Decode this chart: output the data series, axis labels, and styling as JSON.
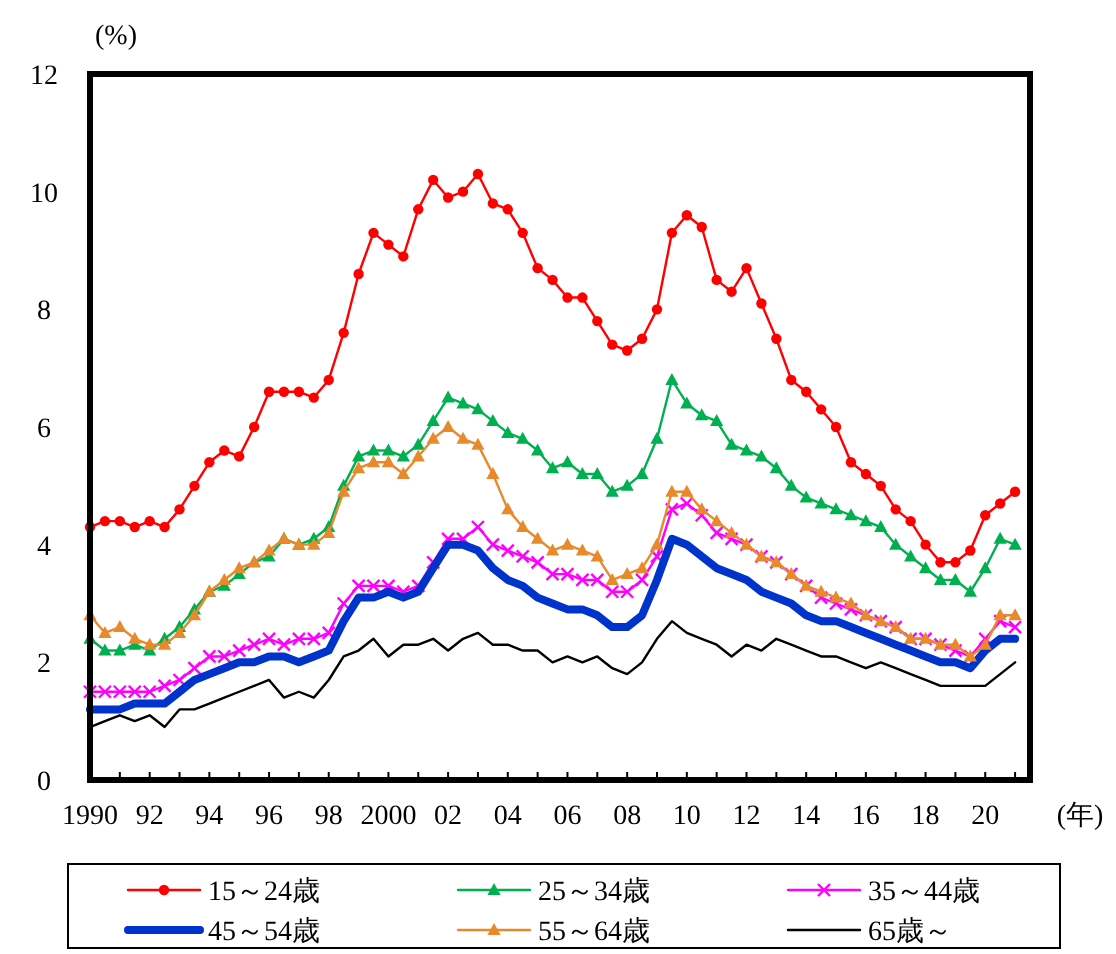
{
  "chart_data": {
    "type": "line",
    "ylabel": "(%)",
    "xlabel": "(年)",
    "x": [
      1990,
      1990.5,
      1991,
      1991.5,
      1992,
      1992.5,
      1993,
      1993.5,
      1994,
      1994.5,
      1995,
      1995.5,
      1996,
      1996.5,
      1997,
      1997.5,
      1998,
      1998.5,
      1999,
      1999.5,
      2000,
      2000.5,
      2001,
      2001.5,
      2002,
      2002.5,
      2003,
      2003.5,
      2004,
      2004.5,
      2005,
      2005.5,
      2006,
      2006.5,
      2007,
      2007.5,
      2008,
      2008.5,
      2009,
      2009.5,
      2010,
      2010.5,
      2011,
      2011.5,
      2012,
      2012.5,
      2013,
      2013.5,
      2014,
      2014.5,
      2015,
      2015.5,
      2016,
      2016.5,
      2017,
      2017.5,
      2018,
      2018.5,
      2019,
      2019.5,
      2020,
      2020.5,
      2021
    ],
    "xlim": [
      1990,
      2021.5
    ],
    "xticks": [
      {
        "value": 1990,
        "label": "1990"
      },
      {
        "value": 1991,
        "label": null
      },
      {
        "value": 1992,
        "label": "92"
      },
      {
        "value": 1993,
        "label": null
      },
      {
        "value": 1994,
        "label": "94"
      },
      {
        "value": 1995,
        "label": null
      },
      {
        "value": 1996,
        "label": "96"
      },
      {
        "value": 1997,
        "label": null
      },
      {
        "value": 1998,
        "label": "98"
      },
      {
        "value": 1999,
        "label": null
      },
      {
        "value": 2000,
        "label": "2000"
      },
      {
        "value": 2001,
        "label": null
      },
      {
        "value": 2002,
        "label": "02"
      },
      {
        "value": 2003,
        "label": null
      },
      {
        "value": 2004,
        "label": "04"
      },
      {
        "value": 2005,
        "label": null
      },
      {
        "value": 2006,
        "label": "06"
      },
      {
        "value": 2007,
        "label": null
      },
      {
        "value": 2008,
        "label": "08"
      },
      {
        "value": 2009,
        "label": null
      },
      {
        "value": 2010,
        "label": "10"
      },
      {
        "value": 2011,
        "label": null
      },
      {
        "value": 2012,
        "label": "12"
      },
      {
        "value": 2013,
        "label": null
      },
      {
        "value": 2014,
        "label": "14"
      },
      {
        "value": 2015,
        "label": null
      },
      {
        "value": 2016,
        "label": "16"
      },
      {
        "value": 2017,
        "label": null
      },
      {
        "value": 2018,
        "label": "18"
      },
      {
        "value": 2019,
        "label": null
      },
      {
        "value": 2020,
        "label": "20"
      },
      {
        "value": 2021,
        "label": null
      }
    ],
    "ylim": [
      0,
      12
    ],
    "yticks": [
      0,
      2,
      4,
      6,
      8,
      10,
      12
    ],
    "grid": false,
    "legend": "bottom",
    "line_style": "solid",
    "series": [
      {
        "name": "15～24歳",
        "color": "#ff0000",
        "marker": "circle",
        "values": [
          4.3,
          4.4,
          4.4,
          4.3,
          4.4,
          4.3,
          4.6,
          5.0,
          5.4,
          5.6,
          5.5,
          6.0,
          6.6,
          6.6,
          6.6,
          6.5,
          6.8,
          7.6,
          8.6,
          9.3,
          9.1,
          8.9,
          9.7,
          10.2,
          9.9,
          10.0,
          10.3,
          9.8,
          9.7,
          9.3,
          8.7,
          8.5,
          8.2,
          8.2,
          7.8,
          7.4,
          7.3,
          7.5,
          8.0,
          9.3,
          9.6,
          9.4,
          8.5,
          8.3,
          8.7,
          8.1,
          7.5,
          6.8,
          6.6,
          6.3,
          6.0,
          5.4,
          5.2,
          5.0,
          4.6,
          4.4,
          4.0,
          3.7,
          3.7,
          3.9,
          4.5,
          4.7,
          4.9
        ]
      },
      {
        "name": "25～34歳",
        "color": "#00b050",
        "marker": "triangle",
        "values": [
          2.4,
          2.2,
          2.2,
          2.3,
          2.2,
          2.4,
          2.6,
          2.9,
          3.2,
          3.3,
          3.5,
          3.7,
          3.8,
          4.1,
          4.0,
          4.1,
          4.3,
          5.0,
          5.5,
          5.6,
          5.6,
          5.5,
          5.7,
          6.1,
          6.5,
          6.4,
          6.3,
          6.1,
          5.9,
          5.8,
          5.6,
          5.3,
          5.4,
          5.2,
          5.2,
          4.9,
          5.0,
          5.2,
          5.8,
          6.8,
          6.4,
          6.2,
          6.1,
          5.7,
          5.6,
          5.5,
          5.3,
          5.0,
          4.8,
          4.7,
          4.6,
          4.5,
          4.4,
          4.3,
          4.0,
          3.8,
          3.6,
          3.4,
          3.4,
          3.2,
          3.6,
          4.1,
          4.0
        ]
      },
      {
        "name": "35～44歳",
        "color": "#ff00ff",
        "marker": "cross",
        "values": [
          1.5,
          1.5,
          1.5,
          1.5,
          1.5,
          1.6,
          1.7,
          1.9,
          2.1,
          2.1,
          2.2,
          2.3,
          2.4,
          2.3,
          2.4,
          2.4,
          2.5,
          3.0,
          3.3,
          3.3,
          3.3,
          3.2,
          3.3,
          3.7,
          4.1,
          4.1,
          4.3,
          4.0,
          3.9,
          3.8,
          3.7,
          3.5,
          3.5,
          3.4,
          3.4,
          3.2,
          3.2,
          3.4,
          3.8,
          4.6,
          4.7,
          4.5,
          4.2,
          4.1,
          4.0,
          3.8,
          3.7,
          3.5,
          3.3,
          3.1,
          3.0,
          2.9,
          2.8,
          2.7,
          2.6,
          2.4,
          2.4,
          2.3,
          2.2,
          2.1,
          2.4,
          2.7,
          2.6
        ]
      },
      {
        "name": "45～54歳",
        "color": "#0033cc",
        "marker": "none",
        "values": [
          1.2,
          1.2,
          1.2,
          1.3,
          1.3,
          1.3,
          1.5,
          1.7,
          1.8,
          1.9,
          2.0,
          2.0,
          2.1,
          2.1,
          2.0,
          2.1,
          2.2,
          2.7,
          3.1,
          3.1,
          3.2,
          3.1,
          3.2,
          3.6,
          4.0,
          4.0,
          3.9,
          3.6,
          3.4,
          3.3,
          3.1,
          3.0,
          2.9,
          2.9,
          2.8,
          2.6,
          2.6,
          2.8,
          3.4,
          4.1,
          4.0,
          3.8,
          3.6,
          3.5,
          3.4,
          3.2,
          3.1,
          3.0,
          2.8,
          2.7,
          2.7,
          2.6,
          2.5,
          2.4,
          2.3,
          2.2,
          2.1,
          2.0,
          2.0,
          1.9,
          2.2,
          2.4,
          2.4
        ]
      },
      {
        "name": "55～64歳",
        "color": "#e8892c",
        "marker": "triangle",
        "values": [
          2.8,
          2.5,
          2.6,
          2.4,
          2.3,
          2.3,
          2.5,
          2.8,
          3.2,
          3.4,
          3.6,
          3.7,
          3.9,
          4.1,
          4.0,
          4.0,
          4.2,
          4.9,
          5.3,
          5.4,
          5.4,
          5.2,
          5.5,
          5.8,
          6.0,
          5.8,
          5.7,
          5.2,
          4.6,
          4.3,
          4.1,
          3.9,
          4.0,
          3.9,
          3.8,
          3.4,
          3.5,
          3.6,
          4.0,
          4.9,
          4.9,
          4.6,
          4.4,
          4.2,
          4.0,
          3.8,
          3.7,
          3.5,
          3.3,
          3.2,
          3.1,
          3.0,
          2.8,
          2.7,
          2.6,
          2.4,
          2.4,
          2.3,
          2.3,
          2.1,
          2.3,
          2.8,
          2.8
        ]
      },
      {
        "name": "65歳～",
        "color": "#000000",
        "marker": "none",
        "values": [
          0.9,
          1.0,
          1.1,
          1.0,
          1.1,
          0.9,
          1.2,
          1.2,
          1.3,
          1.4,
          1.5,
          1.6,
          1.7,
          1.4,
          1.5,
          1.4,
          1.7,
          2.1,
          2.2,
          2.4,
          2.1,
          2.3,
          2.3,
          2.4,
          2.2,
          2.4,
          2.5,
          2.3,
          2.3,
          2.2,
          2.2,
          2.0,
          2.1,
          2.0,
          2.1,
          1.9,
          1.8,
          2.0,
          2.4,
          2.7,
          2.5,
          2.4,
          2.3,
          2.1,
          2.3,
          2.2,
          2.4,
          2.3,
          2.2,
          2.1,
          2.1,
          2.0,
          1.9,
          2.0,
          1.9,
          1.8,
          1.7,
          1.6,
          1.6,
          1.6,
          1.6,
          1.8,
          2.0
        ]
      }
    ]
  }
}
